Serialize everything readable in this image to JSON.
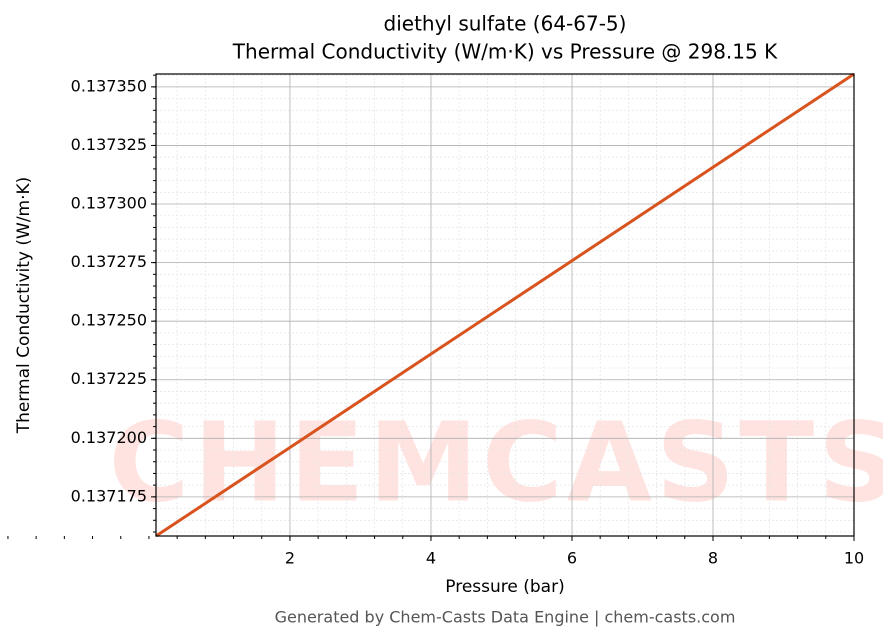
{
  "chart_data": {
    "type": "line",
    "title": "diethyl sulfate (64-67-5)",
    "subtitle": "Thermal Conductivity (W/m·K) vs Pressure @ 298.15 K",
    "x_label": "Pressure (bar)",
    "y_label": "Thermal Conductivity (W/m·K)",
    "footer": "Generated by Chem-Casts Data Engine | chem-casts.com",
    "watermark": "CHEMCASTS",
    "x": [
      0.1,
      2,
      4,
      6,
      8,
      10
    ],
    "series": [
      {
        "name": "Thermal Conductivity",
        "color": "#d9531e",
        "values": [
          0.1371583,
          0.1371961,
          0.137236,
          0.1372758,
          0.1373157,
          0.1373555
        ]
      }
    ],
    "xlim": [
      0.1,
      10
    ],
    "ylim": [
      0.1371583,
      0.1373555
    ],
    "xticks": [
      2,
      4,
      6,
      8,
      10
    ],
    "yticks": [
      0.137175,
      {
        "value": 0.1372,
        "label": "0.137200"
      },
      0.137225,
      {
        "value": 0.13725,
        "label": "0.137250"
      },
      0.137275,
      {
        "value": 0.1373,
        "label": "0.137300"
      },
      0.137325,
      {
        "value": 0.13735,
        "label": "0.137350"
      }
    ],
    "grid": true
  }
}
